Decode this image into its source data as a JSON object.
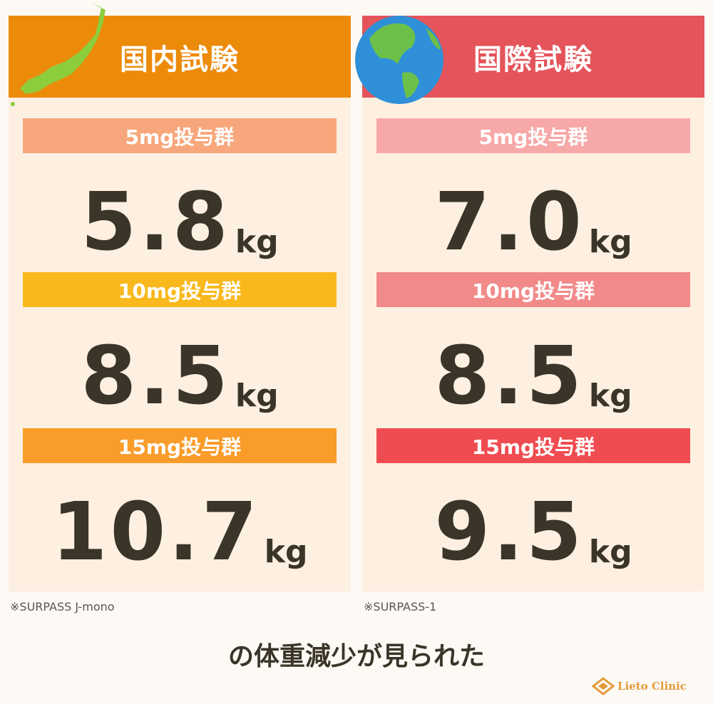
{
  "panels": [
    {
      "title": "国内試験",
      "note": "※SURPASS J-mono",
      "groups": [
        {
          "label": "5mg投与群",
          "value": "5.8",
          "unit": "kg"
        },
        {
          "label": "10mg投与群",
          "value": "8.5",
          "unit": "kg"
        },
        {
          "label": "15mg投与群",
          "value": "10.7",
          "unit": "kg"
        }
      ]
    },
    {
      "title": "国際試験",
      "note": "※SURPASS-1",
      "groups": [
        {
          "label": "5mg投与群",
          "value": "7.0",
          "unit": "kg"
        },
        {
          "label": "10mg投与群",
          "value": "8.5",
          "unit": "kg"
        },
        {
          "label": "15mg投与群",
          "value": "9.5",
          "unit": "kg"
        }
      ]
    }
  ],
  "caption": "の体重減少が見られた",
  "logo": "Lieto Clinic"
}
